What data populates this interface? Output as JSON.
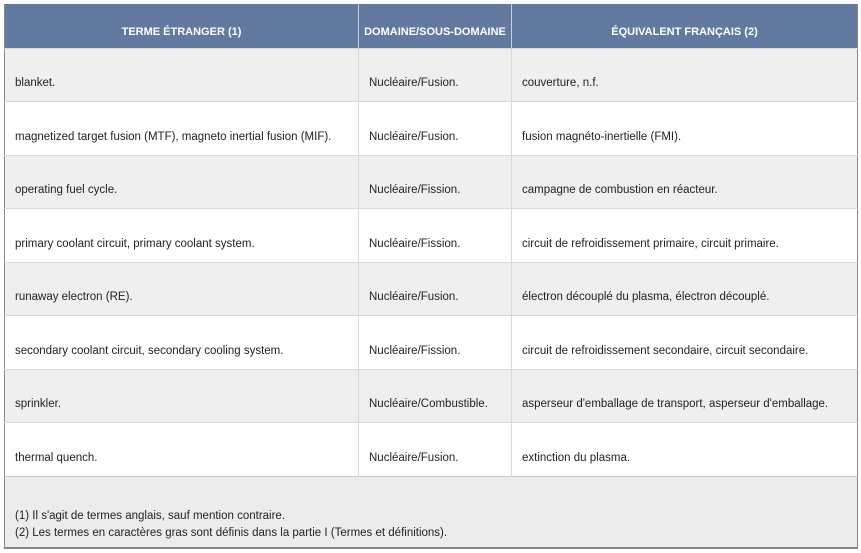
{
  "headers": [
    "TERME ÉTRANGER (1)",
    "DOMAINE/SOUS-DOMAINE",
    "ÉQUIVALENT FRANÇAIS (2)"
  ],
  "rows": [
    {
      "term": "blanket.",
      "domain": "Nucléaire/Fusion.",
      "equivalent": "couverture, n.f."
    },
    {
      "term": "magnetized target fusion (MTF), magneto inertial fusion (MIF).",
      "domain": "Nucléaire/Fusion.",
      "equivalent": "fusion magnéto-inertielle (FMI)."
    },
    {
      "term": "operating fuel cycle.",
      "domain": "Nucléaire/Fission.",
      "equivalent": "campagne de combustion en réacteur."
    },
    {
      "term": "primary coolant circuit, primary coolant system.",
      "domain": "Nucléaire/Fission.",
      "equivalent": "circuit de refroidissement primaire, circuit primaire."
    },
    {
      "term": "runaway electron (RE).",
      "domain": "Nucléaire/Fusion.",
      "equivalent": "électron découplé du plasma, électron découplé."
    },
    {
      "term": "secondary coolant circuit, secondary cooling system.",
      "domain": "Nucléaire/Fission.",
      "equivalent": "circuit de refroidissement secondaire, circuit secondaire."
    },
    {
      "term": "sprinkler.",
      "domain": "Nucléaire/Combustible.",
      "equivalent": "asperseur d'emballage de transport, asperseur d'emballage."
    },
    {
      "term": "thermal quench.",
      "domain": "Nucléaire/Fusion.",
      "equivalent": "extinction du plasma."
    }
  ],
  "footnotes": [
    "(1) Il s'agit de termes anglais, sauf mention contraire.",
    "(2) Les termes en caractères gras sont définis dans la partie I (Termes et définitions)."
  ],
  "colors": {
    "header_bg": "#637aa0",
    "row_alt": "#efefef",
    "footer_bg": "#ececec"
  }
}
